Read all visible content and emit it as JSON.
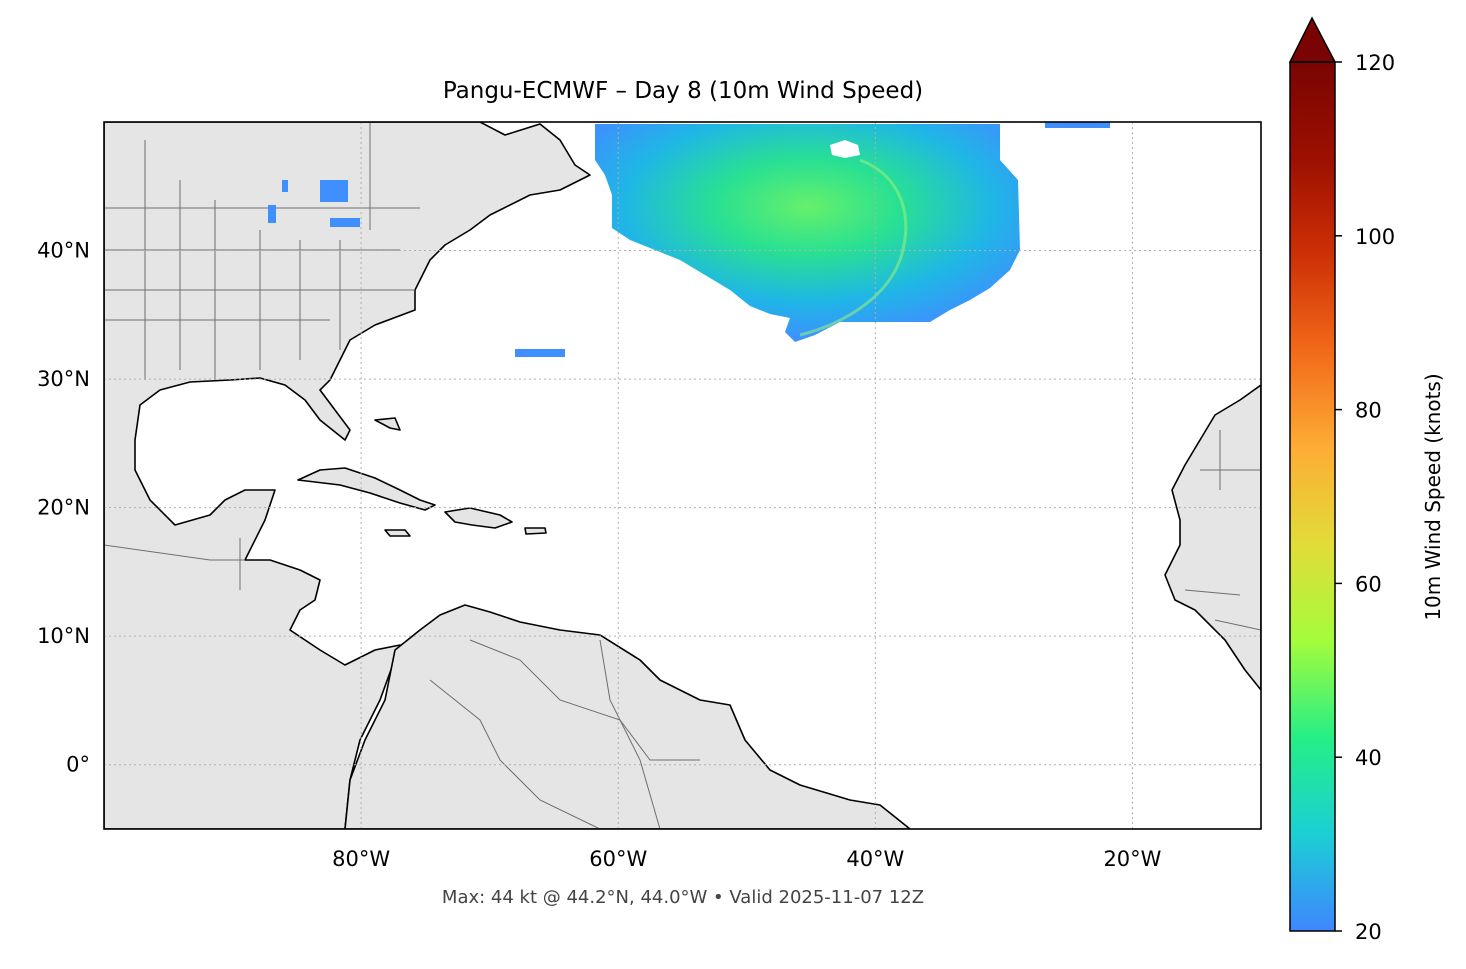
{
  "title": "Pangu-ECMWF – Day 8 (10m Wind Speed)",
  "footer": "Max: 44 kt @ 44.2°N, 44.0°W • Valid 2025-11-07 12Z",
  "map": {
    "lon_range": [
      -100,
      -10
    ],
    "lat_range": [
      -5,
      50
    ],
    "lon_ticks": [
      {
        "value": -80,
        "label": "80°W"
      },
      {
        "value": -60,
        "label": "60°W"
      },
      {
        "value": -40,
        "label": "40°W"
      },
      {
        "value": -20,
        "label": "20°W"
      }
    ],
    "lat_ticks": [
      {
        "value": 40,
        "label": "40°N"
      },
      {
        "value": 30,
        "label": "30°N"
      },
      {
        "value": 20,
        "label": "20°N"
      },
      {
        "value": 10,
        "label": "10°N"
      },
      {
        "value": 0,
        "label": "0°"
      }
    ],
    "gridlines": true,
    "land_color": "#e5e5e5",
    "ocean_color": "#ffffff"
  },
  "colorbar": {
    "label": "10m Wind Speed (knots)",
    "range": [
      20,
      120
    ],
    "ticks": [
      {
        "value": 20,
        "label": "20"
      },
      {
        "value": 40,
        "label": "40"
      },
      {
        "value": 60,
        "label": "60"
      },
      {
        "value": 80,
        "label": "80"
      },
      {
        "value": 100,
        "label": "100"
      },
      {
        "value": 120,
        "label": "120"
      }
    ],
    "extend": "max",
    "colormap": [
      "#3f86fe",
      "#1bcfd4",
      "#25ef86",
      "#a4fc3c",
      "#e2dc38",
      "#fdad35",
      "#f26a1a",
      "#cd3006",
      "#9c1001",
      "#7a0403"
    ]
  },
  "wind_regions": [
    {
      "name": "north-atlantic-storm",
      "peak_kt": 44,
      "peak_lat": 44.2,
      "peak_lon": -44.0
    },
    {
      "name": "lake-patches",
      "peak_kt": 24
    },
    {
      "name": "subtropical-strip",
      "peak_kt": 23
    }
  ]
}
